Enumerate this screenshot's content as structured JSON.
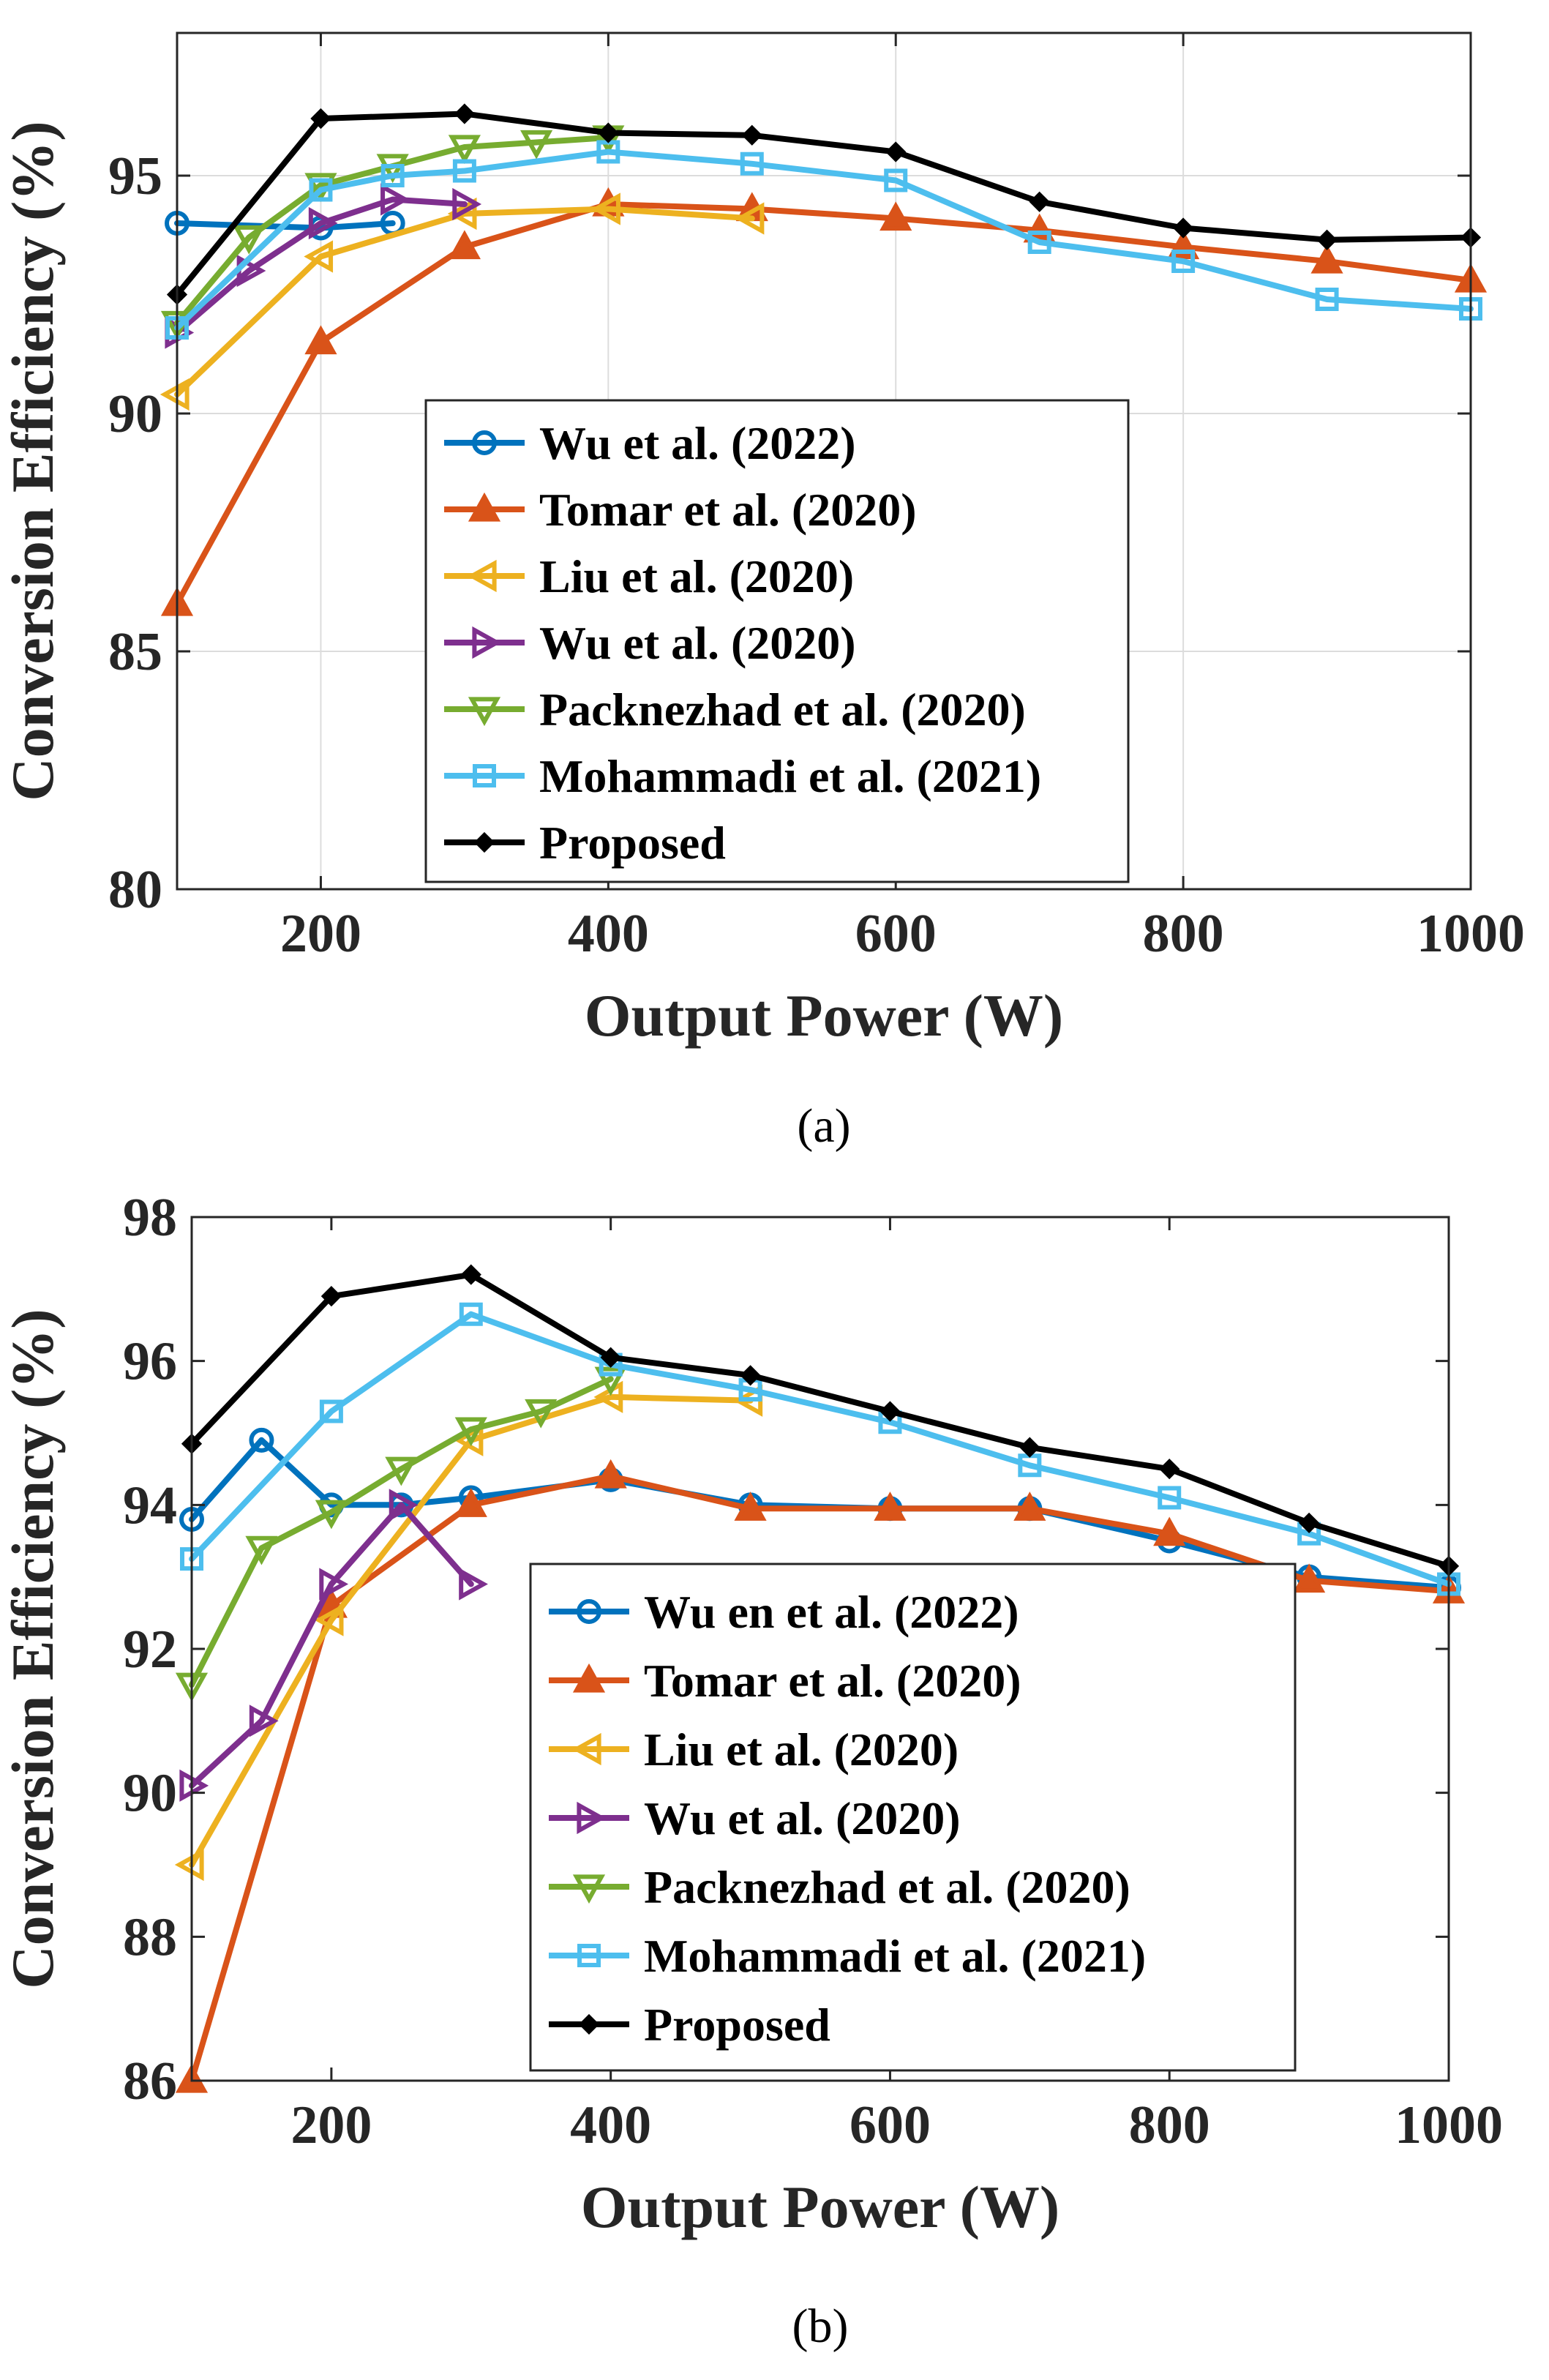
{
  "chart_data": [
    {
      "type": "line",
      "panel_label": "(a)",
      "xlabel": "Output Power (W)",
      "ylabel": "Conversion Efficiency (%)",
      "xlim": [
        100,
        1000
      ],
      "ylim": [
        80,
        98
      ],
      "xticks": [
        200,
        400,
        600,
        800,
        1000
      ],
      "yticks": [
        80,
        85,
        90,
        95
      ],
      "grid": true,
      "legend_position": "lower-center",
      "series": [
        {
          "name": "Wu et al. (2022)",
          "color": "#0072BD",
          "marker": "circle",
          "x": [
            100,
            200,
            250
          ],
          "y": [
            94,
            93.9,
            94
          ]
        },
        {
          "name": "Tomar et al. (2020)",
          "color": "#D95319",
          "marker": "triangle-up",
          "x": [
            100,
            200,
            300,
            400,
            500,
            600,
            700,
            800,
            900,
            1000
          ],
          "y": [
            86,
            91.5,
            93.5,
            94.4,
            94.3,
            94.1,
            93.85,
            93.5,
            93.2,
            92.8
          ]
        },
        {
          "name": "Liu et al. (2020)",
          "color": "#EDB120",
          "marker": "triangle-left",
          "x": [
            100,
            200,
            300,
            400,
            500
          ],
          "y": [
            90.4,
            93.3,
            94.2,
            94.3,
            94.1
          ]
        },
        {
          "name": "Wu et al. (2020)",
          "color": "#7E2F8E",
          "marker": "triangle-right",
          "x": [
            100,
            150,
            200,
            250,
            300
          ],
          "y": [
            91.7,
            93,
            94,
            94.5,
            94.4
          ]
        },
        {
          "name": "Packnezhad et al. (2020)",
          "color": "#77AC30",
          "marker": "triangle-down",
          "x": [
            100,
            150,
            200,
            250,
            300,
            350,
            400
          ],
          "y": [
            91.9,
            93.7,
            94.8,
            95.2,
            95.6,
            95.7,
            95.8
          ]
        },
        {
          "name": "Mohammadi et al. (2021)",
          "color": "#4DBEEE",
          "marker": "square",
          "x": [
            100,
            200,
            250,
            300,
            400,
            500,
            600,
            700,
            800,
            900,
            1000
          ],
          "y": [
            91.8,
            94.7,
            95,
            95.1,
            95.5,
            95.25,
            94.9,
            93.6,
            93.2,
            92.4,
            92.2
          ]
        },
        {
          "name": "Proposed",
          "color": "#000000",
          "marker": "diamond",
          "x": [
            100,
            200,
            300,
            400,
            500,
            600,
            700,
            800,
            900,
            1000
          ],
          "y": [
            92.5,
            96.2,
            96.3,
            95.9,
            95.85,
            95.5,
            94.45,
            93.9,
            93.65,
            93.7
          ]
        }
      ]
    },
    {
      "type": "line",
      "panel_label": "(b)",
      "xlabel": "Output Power (W)",
      "ylabel": "Conversion Efficiency (%)",
      "xlim": [
        100,
        1000
      ],
      "ylim": [
        86,
        98
      ],
      "xticks": [
        200,
        400,
        600,
        800,
        1000
      ],
      "yticks": [
        86,
        88,
        90,
        92,
        94,
        96,
        98
      ],
      "grid": false,
      "legend_position": "lower-center",
      "series": [
        {
          "name": "Wu en et al. (2022)",
          "color": "#0072BD",
          "marker": "circle",
          "x": [
            100,
            150,
            200,
            250,
            300,
            400,
            500,
            600,
            700,
            800,
            900,
            1000
          ],
          "y": [
            93.8,
            94.9,
            94,
            94,
            94.1,
            94.35,
            94,
            93.95,
            93.95,
            93.5,
            93,
            92.85
          ]
        },
        {
          "name": "Tomar et al. (2020)",
          "color": "#D95319",
          "marker": "triangle-up",
          "x": [
            100,
            200,
            300,
            400,
            500,
            600,
            700,
            800,
            900,
            1000
          ],
          "y": [
            86,
            92.6,
            94,
            94.4,
            93.95,
            93.95,
            93.95,
            93.6,
            92.95,
            92.8
          ]
        },
        {
          "name": "Liu et al. (2020)",
          "color": "#EDB120",
          "marker": "triangle-left",
          "x": [
            100,
            200,
            300,
            400,
            500
          ],
          "y": [
            89,
            92.4,
            94.9,
            95.5,
            95.45
          ]
        },
        {
          "name": "Wu et al. (2020)",
          "color": "#7E2F8E",
          "marker": "triangle-right",
          "x": [
            100,
            150,
            200,
            250,
            300
          ],
          "y": [
            90.1,
            91,
            92.9,
            94,
            92.9
          ]
        },
        {
          "name": "Packnezhad et al. (2020)",
          "color": "#77AC30",
          "marker": "triangle-down",
          "x": [
            100,
            150,
            200,
            250,
            300,
            350,
            400
          ],
          "y": [
            91.5,
            93.4,
            93.9,
            94.5,
            95.05,
            95.3,
            95.75
          ]
        },
        {
          "name": "Mohammadi et al. (2021)",
          "color": "#4DBEEE",
          "marker": "square",
          "x": [
            100,
            200,
            300,
            400,
            500,
            600,
            700,
            800,
            900,
            1000
          ],
          "y": [
            93.25,
            95.3,
            96.65,
            95.95,
            95.6,
            95.15,
            94.55,
            94.1,
            93.6,
            92.9
          ]
        },
        {
          "name": "Proposed",
          "color": "#000000",
          "marker": "diamond",
          "x": [
            100,
            200,
            300,
            400,
            500,
            600,
            700,
            800,
            900,
            1000
          ],
          "y": [
            94.85,
            96.9,
            97.2,
            96.05,
            95.8,
            95.3,
            94.8,
            94.5,
            93.75,
            93.15
          ]
        }
      ]
    }
  ]
}
